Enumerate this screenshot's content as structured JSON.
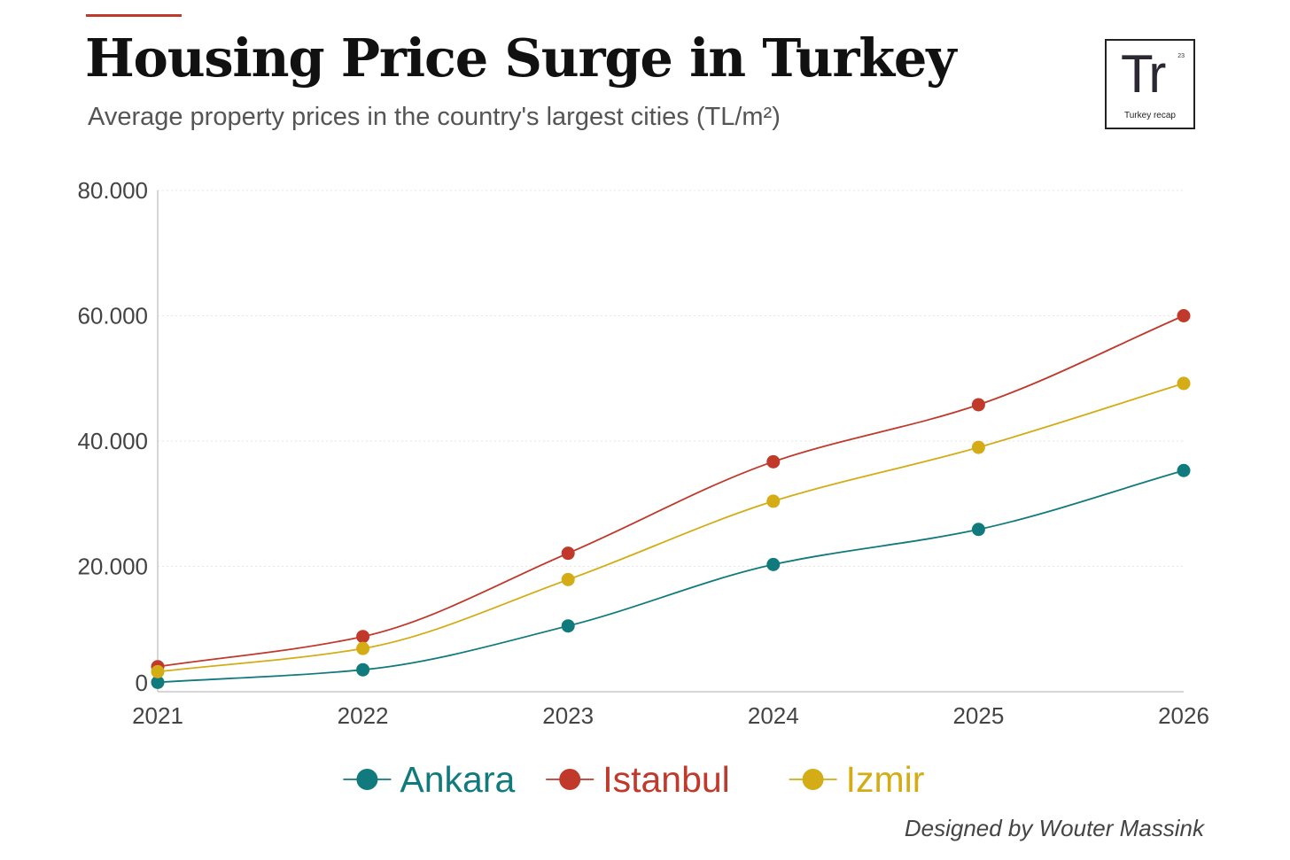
{
  "header": {
    "title": "Housing Price Surge in Turkey",
    "subtitle": "Average property prices in the country's largest cities (TL/m²)",
    "accent_color": "#c0392b"
  },
  "logo": {
    "mark": "Tr",
    "number": "23",
    "name": "Turkey recap"
  },
  "chart_data": {
    "type": "line",
    "title": "Housing Price Surge in Turkey",
    "subtitle": "Average property prices in the country's largest cities (TL/m²)",
    "xlabel": "",
    "ylabel": "TL/m²",
    "x": [
      2021,
      2022,
      2023,
      2024,
      2025,
      2026
    ],
    "x_tick_labels": [
      "2021",
      "2022",
      "2023",
      "2024",
      "2025",
      "2026"
    ],
    "ylim": [
      0,
      80000
    ],
    "y_ticks": [
      0,
      20000,
      40000,
      60000,
      80000
    ],
    "y_tick_labels": [
      "0",
      "20.000",
      "40.000",
      "60.000",
      "80.000"
    ],
    "grid": true,
    "legend_position": "bottom-center",
    "series": [
      {
        "name": "Ankara",
        "color": "#117a7d",
        "values": [
          1500,
          3500,
          10500,
          20300,
          25900,
          35300
        ]
      },
      {
        "name": "Istanbul",
        "color": "#c0392b",
        "values": [
          4000,
          8800,
          22100,
          36700,
          45800,
          60000
        ]
      },
      {
        "name": "Izmir",
        "color": "#d4ac16",
        "values": [
          3200,
          6900,
          17900,
          30400,
          39000,
          49200
        ]
      }
    ]
  },
  "footer": {
    "credit": "Designed by Wouter Massink"
  }
}
